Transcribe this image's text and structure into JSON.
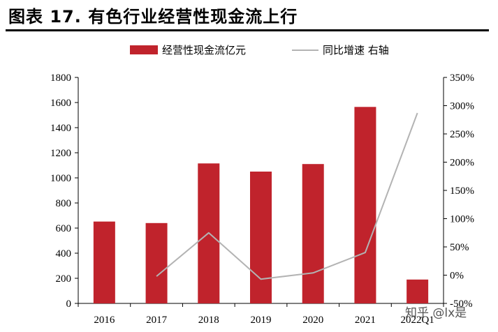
{
  "title": "图表 17. 有色行业经营性现金流上行",
  "watermark": "知乎 @lx是",
  "chart_data": {
    "type": "bar",
    "categories": [
      "2016",
      "2017",
      "2018",
      "2019",
      "2020",
      "2021",
      "2022Q1"
    ],
    "series": [
      {
        "name": "经营性现金流亿元",
        "type": "bar",
        "axis": "left",
        "values": [
          652,
          640,
          1115,
          1050,
          1110,
          1565,
          190
        ]
      },
      {
        "name": "同比增速 右轴",
        "type": "line",
        "axis": "right",
        "values": [
          null,
          -2,
          75,
          -7,
          4,
          40,
          287
        ]
      }
    ],
    "left_axis": {
      "min": 0,
      "max": 1800,
      "step": 200,
      "ticks": [
        "0",
        "200",
        "400",
        "600",
        "800",
        "1000",
        "1200",
        "1400",
        "1600",
        "1800"
      ]
    },
    "right_axis": {
      "min": -50,
      "max": 350,
      "step": 50,
      "ticks": [
        "-50%",
        "0%",
        "50%",
        "100%",
        "150%",
        "200%",
        "250%",
        "300%",
        "350%"
      ]
    },
    "colors": {
      "bar": "#c0232c",
      "line": "#b3b3b3"
    },
    "legend_position": "top-center",
    "grid": false
  }
}
